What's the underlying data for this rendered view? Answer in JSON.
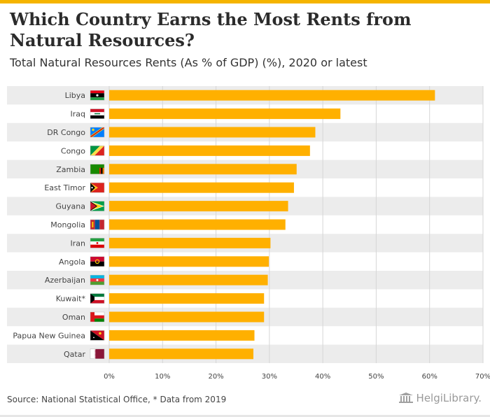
{
  "title": "Which Country Earns the Most Rents from Natural Resources?",
  "subtitle": "Total Natural Resources Rents (As % of GDP) (%), 2020 or latest",
  "footer": {
    "source": "Source: National Statistical Office, * Data from 2019",
    "brand": "HelgiLibrary."
  },
  "colors": {
    "bar": "#ffb000",
    "accent": "#f5b400",
    "row_band": "#ececec",
    "grid": "#d6d6d6"
  },
  "chart_data": {
    "type": "bar",
    "orientation": "horizontal",
    "title": "Total Natural Resources Rents (As % of GDP) (%), 2020 or latest",
    "xlabel": "",
    "ylabel": "",
    "xlim": [
      0,
      70
    ],
    "xticks": [
      0,
      10,
      20,
      30,
      40,
      50,
      60,
      70
    ],
    "tick_suffix": "%",
    "grid": true,
    "categories": [
      "Libya",
      "Iraq",
      "DR Congo",
      "Congo",
      "Zambia",
      "East Timor",
      "Guyana",
      "Mongolia",
      "Iran",
      "Angola",
      "Azerbaijan",
      "Kuwait*",
      "Oman",
      "Papua New Guinea",
      "Qatar"
    ],
    "flags": [
      "libya-flag-icon",
      "iraq-flag-icon",
      "dr-congo-flag-icon",
      "congo-flag-icon",
      "zambia-flag-icon",
      "east-timor-flag-icon",
      "guyana-flag-icon",
      "mongolia-flag-icon",
      "iran-flag-icon",
      "angola-flag-icon",
      "azerbaijan-flag-icon",
      "kuwait-flag-icon",
      "oman-flag-icon",
      "papua-new-guinea-flag-icon",
      "qatar-flag-icon"
    ],
    "values": [
      61.0,
      43.3,
      38.6,
      37.6,
      35.1,
      34.6,
      33.5,
      33.0,
      30.2,
      29.9,
      29.7,
      29.0,
      29.0,
      27.2,
      27.0
    ]
  }
}
